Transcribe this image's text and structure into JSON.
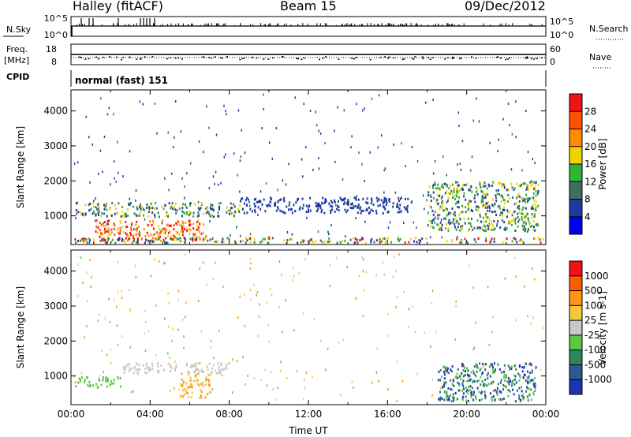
{
  "header": {
    "station": "Halley (fitACF)",
    "beam": "Beam 15",
    "date": "09/Dec/2012"
  },
  "panels": {
    "nsky": {
      "label": "N.Sky",
      "left_ticks": [
        "10^5",
        "10^0"
      ],
      "right_ticks": [
        "10^5",
        "10^0"
      ],
      "right_label": "N.Search"
    },
    "freq": {
      "label_line1": "Freq.",
      "label_line2": "[MHz]",
      "left_ticks": [
        "18",
        "8"
      ],
      "right_ticks": [
        "60",
        "0"
      ],
      "right_label": "Nave"
    },
    "cpid": {
      "label": "CPID",
      "text": "normal (fast) 151"
    }
  },
  "icons": {
    "nsearch_legend": "dotted-line-swatch",
    "nave_legend": "dotted-line-swatch"
  },
  "chart_data": [
    {
      "type": "heatmap",
      "name": "Power",
      "xlabel": "",
      "ylabel": "Slant Range [km]",
      "xlim": [
        0,
        24
      ],
      "ylim": [
        180,
        4600
      ],
      "x_tick_values": [
        0,
        4,
        8,
        12,
        16,
        20,
        24
      ],
      "y_tick_values": [
        1000,
        2000,
        3000,
        4000
      ],
      "y_tick_labels": [
        "1000",
        "2000",
        "3000",
        "4000"
      ],
      "colorbar": {
        "label": "Power [dB]",
        "tick_labels": [
          "4",
          "8",
          "12",
          "16",
          "20",
          "24",
          "28"
        ],
        "colors": [
          "#0000ee",
          "#1e3ca0",
          "#3c6e64",
          "#32b432",
          "#f0d200",
          "#ff8c00",
          "#ff5000",
          "#f01414"
        ]
      },
      "regions": [
        {
          "x": [
            1.2,
            6.8
          ],
          "y": [
            300,
            900
          ],
          "level": "high"
        },
        {
          "x": [
            0.2,
            8.5
          ],
          "y": [
            1000,
            1400
          ],
          "level": "medium"
        },
        {
          "x": [
            8.5,
            17.0
          ],
          "y": [
            1100,
            1550
          ],
          "level": "low"
        },
        {
          "x": [
            18.0,
            23.6
          ],
          "y": [
            600,
            2000
          ],
          "level": "medium"
        },
        {
          "x": [
            0.0,
            24.0
          ],
          "y": [
            250,
            400
          ],
          "level": "mixed"
        }
      ]
    },
    {
      "type": "heatmap",
      "name": "Velocity",
      "xlabel": "Time UT",
      "ylabel": "Slant Range [km]",
      "xlim": [
        0,
        24
      ],
      "ylim": [
        180,
        4600
      ],
      "x_tick_values": [
        0,
        4,
        8,
        12,
        16,
        20,
        24
      ],
      "x_tick_labels": [
        "00:00",
        "04:00",
        "08:00",
        "12:00",
        "16:00",
        "20:00",
        "00:00"
      ],
      "y_tick_values": [
        1000,
        2000,
        3000,
        4000
      ],
      "y_tick_labels": [
        "1000",
        "2000",
        "3000",
        "4000"
      ],
      "colorbar": {
        "label": "Velocity [m s-1]",
        "tick_labels": [
          "1000",
          "500",
          "100",
          "25",
          "-25",
          "-100",
          "-500",
          "-1000"
        ],
        "colors": [
          "#1e32b4",
          "#2d5a8c",
          "#328264",
          "#5ac846",
          "#c8c8c8",
          "#f0c83c",
          "#ff9614",
          "#ff5a00",
          "#f01414"
        ]
      },
      "regions": [
        {
          "x": [
            0.2,
            2.5
          ],
          "y": [
            700,
            1000
          ],
          "level": "positive-low"
        },
        {
          "x": [
            2.5,
            8.0
          ],
          "y": [
            1100,
            1400
          ],
          "level": "near-zero"
        },
        {
          "x": [
            5.5,
            7.0
          ],
          "y": [
            400,
            1100
          ],
          "level": "negative"
        },
        {
          "x": [
            18.5,
            23.5
          ],
          "y": [
            300,
            1400
          ],
          "level": "positive"
        }
      ]
    }
  ]
}
